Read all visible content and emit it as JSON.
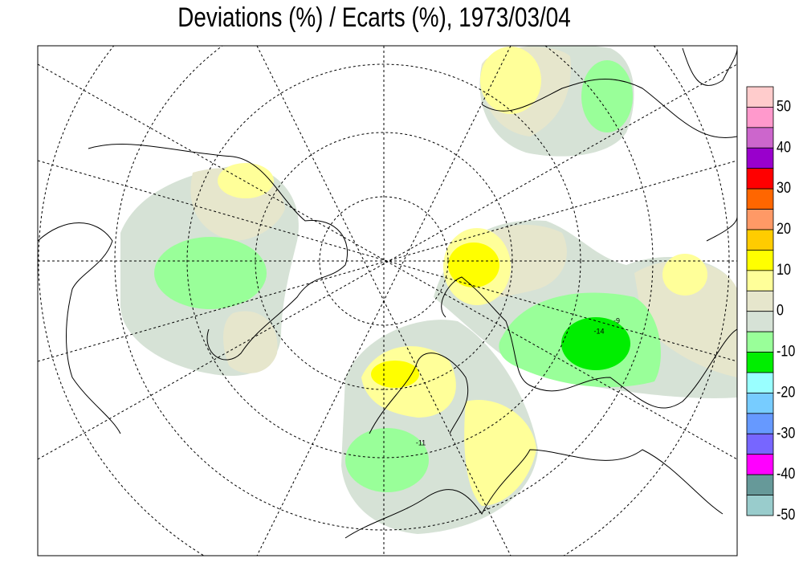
{
  "title": "Deviations (%) / Ecarts (%), 1973/03/04",
  "legend": {
    "colors": [
      "#ffcccc",
      "#ff99cc",
      "#cc66cc",
      "#9900cc",
      "#ff0000",
      "#ff6600",
      "#ff9966",
      "#ffcc00",
      "#ffff00",
      "#ffff99",
      "#e6e6cc",
      "#d6e2d6",
      "#99ff99",
      "#00ee00",
      "#99ffff",
      "#77ccff",
      "#6699ff",
      "#7766ff",
      "#ff00ff",
      "#669999",
      "#99cccc"
    ],
    "labels": [
      50,
      40,
      30,
      20,
      10,
      0,
      -10,
      -20,
      -30,
      -40,
      -50
    ]
  },
  "contour_labels": [
    "-14",
    "-11",
    "-9"
  ]
}
